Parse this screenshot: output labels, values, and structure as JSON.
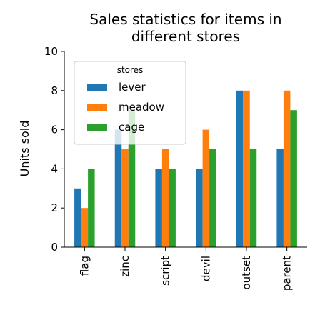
{
  "chart_data": {
    "type": "bar",
    "title": "Sales statistics for items in different stores",
    "title_lines": [
      "Sales statistics for items in",
      "different stores"
    ],
    "xlabel": "",
    "ylabel": "Units sold",
    "ylim": [
      0,
      10
    ],
    "yticks": [
      "0",
      "2",
      "4",
      "6",
      "8",
      "10"
    ],
    "categories": [
      "flag",
      "zinc",
      "script",
      "devil",
      "outset",
      "parent"
    ],
    "legend_title": "stores",
    "legend_position": "top-left",
    "grid": false,
    "series": [
      {
        "name": "lever",
        "color": "#1f77b4",
        "values": [
          3,
          6,
          4,
          4,
          8,
          5
        ]
      },
      {
        "name": "meadow",
        "color": "#ff7f0e",
        "values": [
          2,
          5,
          5,
          6,
          8,
          8
        ]
      },
      {
        "name": "cage",
        "color": "#2ca02c",
        "values": [
          4,
          7,
          4,
          5,
          5,
          7
        ]
      }
    ]
  }
}
